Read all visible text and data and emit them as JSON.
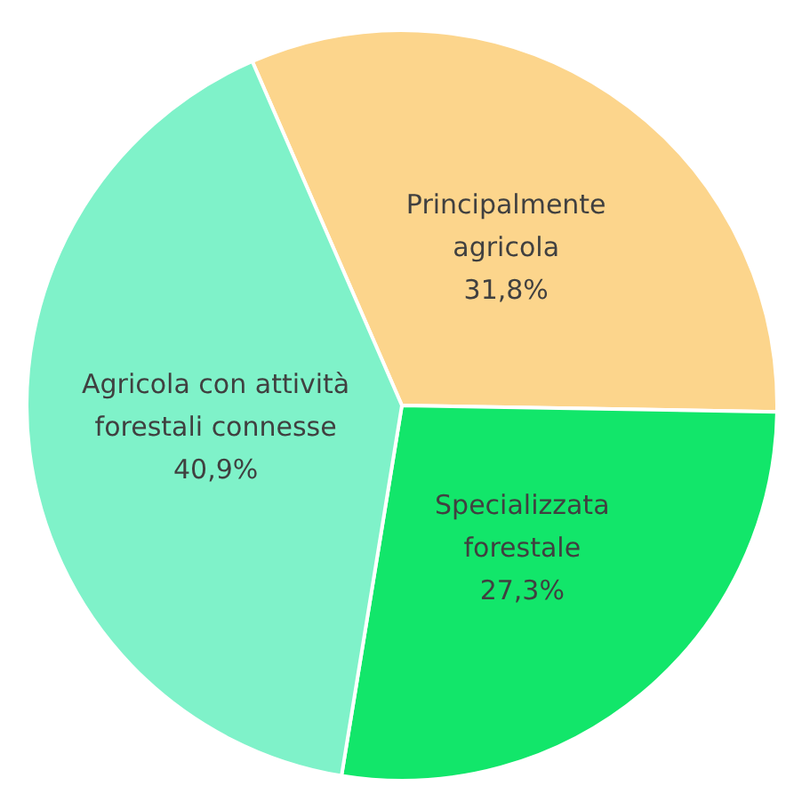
{
  "chart_data": {
    "type": "pie",
    "categories": [
      "Principalmente agricola",
      "Specializzata forestale",
      "Agricola con attività forestali connesse"
    ],
    "values": [
      31.8,
      27.3,
      40.9
    ],
    "colors": [
      "#fcd58c",
      "#12e66a",
      "#7ff2c9"
    ],
    "value_labels": [
      "31,8%",
      "27,3%",
      "40,9%"
    ],
    "legend": false
  }
}
